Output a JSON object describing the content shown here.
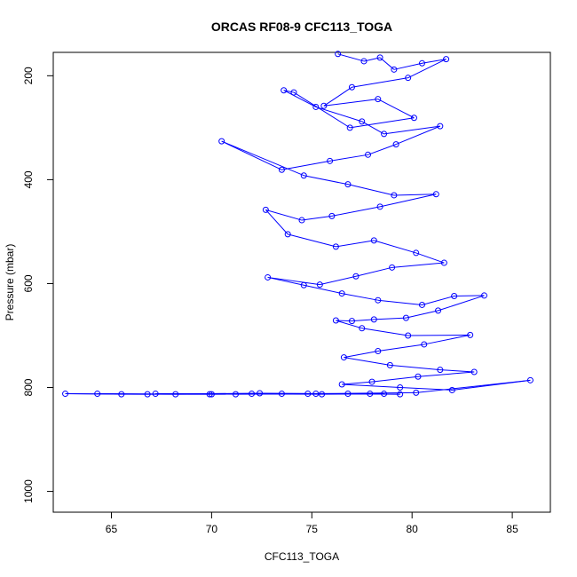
{
  "chart_data": {
    "type": "line",
    "title": "ORCAS RF08-9 CFC113_TOGA",
    "xlabel": "CFC113_TOGA",
    "ylabel": "Pressure (mbar)",
    "xlim": [
      62.1,
      86.9
    ],
    "ylim": [
      1040,
      155
    ],
    "y_reversed": true,
    "x_ticks": [
      65,
      70,
      75,
      80,
      85
    ],
    "y_ticks": [
      200,
      400,
      600,
      800,
      1000
    ],
    "grid": false,
    "legend": "none",
    "marker": "open-circle",
    "line_color": "#0000ff",
    "series": [
      {
        "values_note": "",
        "points": [
          [
            76.3,
            158
          ],
          [
            77.6,
            172
          ],
          [
            78.4,
            165
          ],
          [
            79.1,
            188
          ],
          [
            80.5,
            176
          ],
          [
            81.7,
            168
          ],
          [
            79.8,
            204
          ],
          [
            77.0,
            222
          ],
          [
            75.6,
            258
          ],
          [
            78.3,
            245
          ],
          [
            80.1,
            281
          ],
          [
            76.9,
            300
          ],
          [
            74.1,
            232
          ],
          [
            73.6,
            228
          ],
          [
            75.2,
            260
          ],
          [
            77.5,
            288
          ],
          [
            78.6,
            312
          ],
          [
            81.4,
            297
          ],
          [
            79.2,
            332
          ],
          [
            77.8,
            352
          ],
          [
            75.9,
            364
          ],
          [
            73.5,
            381
          ],
          [
            70.5,
            326
          ],
          [
            74.6,
            392
          ],
          [
            76.8,
            409
          ],
          [
            79.1,
            430
          ],
          [
            81.2,
            428
          ],
          [
            78.4,
            452
          ],
          [
            76.0,
            470
          ],
          [
            74.5,
            478
          ],
          [
            72.7,
            458
          ],
          [
            73.8,
            505
          ],
          [
            76.2,
            529
          ],
          [
            78.1,
            517
          ],
          [
            80.2,
            541
          ],
          [
            81.6,
            560
          ],
          [
            79.0,
            569
          ],
          [
            77.2,
            586
          ],
          [
            75.4,
            602
          ],
          [
            72.8,
            588
          ],
          [
            74.6,
            603
          ],
          [
            76.5,
            619
          ],
          [
            78.3,
            632
          ],
          [
            80.5,
            641
          ],
          [
            82.1,
            624
          ],
          [
            83.6,
            623
          ],
          [
            81.3,
            652
          ],
          [
            79.7,
            666
          ],
          [
            78.1,
            669
          ],
          [
            77.0,
            672
          ],
          [
            76.2,
            671
          ],
          [
            77.5,
            686
          ],
          [
            79.8,
            700
          ],
          [
            82.9,
            699
          ],
          [
            80.6,
            717
          ],
          [
            78.3,
            730
          ],
          [
            76.6,
            742
          ],
          [
            78.9,
            757
          ],
          [
            81.4,
            766
          ],
          [
            83.1,
            770
          ],
          [
            80.3,
            779
          ],
          [
            78.0,
            789
          ],
          [
            76.5,
            794
          ],
          [
            79.4,
            800
          ],
          [
            82.0,
            805
          ],
          [
            85.9,
            786
          ],
          [
            80.2,
            810
          ],
          [
            75.2,
            812
          ],
          [
            70.0,
            813
          ],
          [
            65.5,
            813
          ],
          [
            62.7,
            812
          ],
          [
            66.8,
            813
          ],
          [
            72.4,
            811
          ],
          [
            76.8,
            812
          ],
          [
            79.4,
            813
          ],
          [
            74.8,
            812
          ],
          [
            68.2,
            813
          ],
          [
            64.3,
            812
          ],
          [
            69.9,
            813
          ],
          [
            73.5,
            812
          ],
          [
            77.9,
            812
          ],
          [
            71.2,
            813
          ],
          [
            67.2,
            812
          ],
          [
            75.5,
            813
          ],
          [
            78.6,
            812
          ],
          [
            72.0,
            812
          ]
        ]
      }
    ]
  }
}
